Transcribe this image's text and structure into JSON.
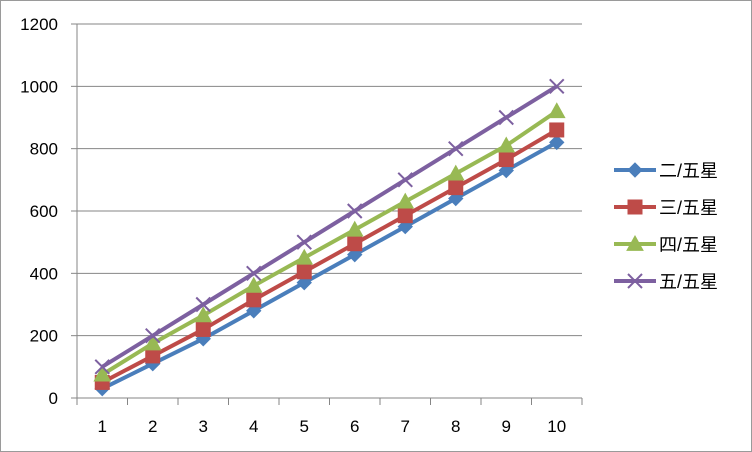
{
  "chart_data": {
    "type": "line",
    "categories": [
      "1",
      "2",
      "3",
      "4",
      "5",
      "6",
      "7",
      "8",
      "9",
      "10"
    ],
    "ylim": [
      0,
      1200
    ],
    "yticks": [
      0,
      200,
      400,
      600,
      800,
      1000,
      1200
    ],
    "grid": true,
    "legend_position": "right",
    "series": [
      {
        "name": "二/五星",
        "color": "#4a7ebb",
        "marker": "diamond",
        "values": [
          30,
          110,
          190,
          280,
          370,
          460,
          550,
          640,
          730,
          820
        ]
      },
      {
        "name": "三/五星",
        "color": "#be4b48",
        "marker": "square",
        "values": [
          50,
          135,
          220,
          315,
          405,
          495,
          585,
          675,
          765,
          860
        ]
      },
      {
        "name": "四/五星",
        "color": "#98b954",
        "marker": "triangle",
        "values": [
          75,
          175,
          265,
          360,
          450,
          540,
          630,
          720,
          810,
          920
        ]
      },
      {
        "name": "五/五星",
        "color": "#7d60a0",
        "marker": "x",
        "values": [
          100,
          200,
          300,
          400,
          500,
          600,
          700,
          800,
          900,
          1000
        ]
      }
    ]
  }
}
